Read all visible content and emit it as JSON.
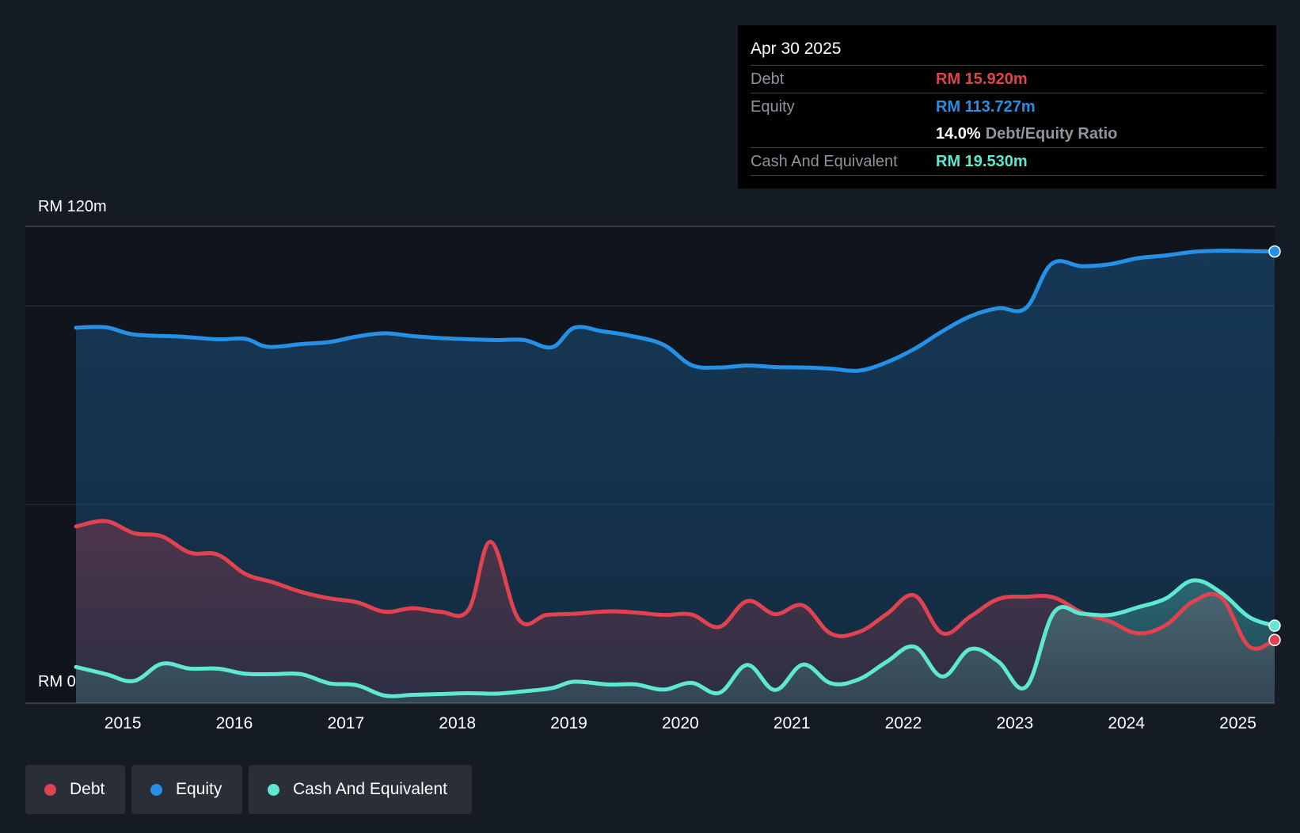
{
  "colors": {
    "background": "#151b24",
    "plot_background": "#10151d",
    "debt": "#e0434f",
    "equity": "#2491e6",
    "cash": "#5ee8d1"
  },
  "tooltip": {
    "date": "Apr 30 2025",
    "debt_label": "Debt",
    "debt_value": "RM 15.920m",
    "equity_label": "Equity",
    "equity_value": "RM 113.727m",
    "ratio_value": "14.0%",
    "ratio_label": "Debt/Equity Ratio",
    "cash_label": "Cash And Equivalent",
    "cash_value": "RM 19.530m"
  },
  "legend": {
    "debt": "Debt",
    "equity": "Equity",
    "cash": "Cash And Equivalent"
  },
  "chart_data": {
    "type": "area",
    "title": "",
    "xlabel": "",
    "ylabel": "",
    "y_top_label": "RM 120m",
    "y_bottom_label": "RM 0",
    "ylim": [
      0,
      120
    ],
    "xlim": [
      2014.58,
      2025.33
    ],
    "x_tick_labels": [
      "2015",
      "2016",
      "2017",
      "2018",
      "2019",
      "2020",
      "2021",
      "2022",
      "2023",
      "2024",
      "2025"
    ],
    "x_ticks": [
      2015,
      2016,
      2017,
      2018,
      2019,
      2020,
      2021,
      2022,
      2023,
      2024,
      2025
    ],
    "gridlines": [
      50,
      100,
      120
    ],
    "series": [
      {
        "name": "Equity",
        "x": [
          2014.58,
          2014.85,
          2015.1,
          2015.5,
          2015.85,
          2016.1,
          2016.3,
          2016.6,
          2016.85,
          2017.1,
          2017.35,
          2017.6,
          2017.85,
          2018.1,
          2018.35,
          2018.6,
          2018.85,
          2019.05,
          2019.3,
          2019.55,
          2019.85,
          2020.1,
          2020.35,
          2020.6,
          2020.85,
          2021.1,
          2021.35,
          2021.6,
          2021.85,
          2022.1,
          2022.35,
          2022.6,
          2022.85,
          2023.1,
          2023.33,
          2023.6,
          2023.85,
          2024.1,
          2024.35,
          2024.6,
          2024.85,
          2025.1,
          2025.33
        ],
        "values": [
          94.5,
          94.6,
          92.8,
          92.3,
          91.6,
          91.7,
          89.7,
          90.4,
          90.9,
          92.3,
          93.1,
          92.4,
          91.9,
          91.6,
          91.4,
          91.4,
          89.6,
          94.5,
          93.6,
          92.5,
          90.2,
          85.1,
          84.5,
          85.0,
          84.6,
          84.5,
          84.2,
          83.7,
          85.8,
          89.2,
          93.6,
          97.4,
          99.4,
          99.5,
          110.6,
          110.0,
          110.5,
          112.0,
          112.7,
          113.6,
          113.9,
          113.8,
          113.7
        ]
      },
      {
        "name": "Debt",
        "x": [
          2014.58,
          2014.85,
          2015.1,
          2015.35,
          2015.6,
          2015.85,
          2016.1,
          2016.35,
          2016.6,
          2016.85,
          2017.1,
          2017.35,
          2017.6,
          2017.85,
          2018.1,
          2018.3,
          2018.55,
          2018.8,
          2019.05,
          2019.35,
          2019.6,
          2019.85,
          2020.1,
          2020.35,
          2020.6,
          2020.85,
          2021.1,
          2021.35,
          2021.6,
          2021.85,
          2022.1,
          2022.35,
          2022.6,
          2022.85,
          2023.1,
          2023.35,
          2023.6,
          2023.85,
          2024.1,
          2024.35,
          2024.6,
          2024.85,
          2025.1,
          2025.33
        ],
        "values": [
          44.5,
          45.8,
          42.8,
          42.0,
          37.9,
          37.4,
          32.5,
          30.4,
          28.0,
          26.4,
          25.4,
          23.0,
          23.9,
          23.0,
          23.5,
          40.6,
          21.1,
          22.2,
          22.5,
          23.1,
          22.8,
          22.2,
          22.3,
          19.2,
          25.7,
          22.4,
          24.6,
          17.5,
          17.9,
          22.4,
          27.1,
          17.6,
          21.8,
          26.2,
          26.8,
          26.6,
          22.8,
          20.6,
          17.6,
          19.6,
          25.6,
          26.6,
          14.3,
          15.9
        ]
      },
      {
        "name": "Cash And Equivalent",
        "x": [
          2014.58,
          2014.85,
          2015.1,
          2015.35,
          2015.6,
          2015.85,
          2016.1,
          2016.35,
          2016.6,
          2016.85,
          2017.1,
          2017.35,
          2017.6,
          2017.85,
          2018.1,
          2018.35,
          2018.6,
          2018.85,
          2019.05,
          2019.35,
          2019.6,
          2019.85,
          2020.1,
          2020.35,
          2020.6,
          2020.85,
          2021.1,
          2021.35,
          2021.6,
          2021.85,
          2022.1,
          2022.35,
          2022.6,
          2022.85,
          2023.1,
          2023.35,
          2023.6,
          2023.85,
          2024.1,
          2024.35,
          2024.6,
          2024.85,
          2025.1,
          2025.33
        ],
        "values": [
          9.1,
          7.3,
          5.6,
          9.9,
          8.7,
          8.7,
          7.4,
          7.3,
          7.3,
          5.0,
          4.5,
          1.9,
          2.1,
          2.3,
          2.5,
          2.4,
          3.0,
          3.8,
          5.4,
          4.7,
          4.7,
          3.4,
          5.1,
          2.6,
          9.6,
          3.3,
          9.7,
          5.0,
          6.0,
          10.4,
          14.2,
          6.7,
          13.6,
          10.5,
          4.1,
          22.8,
          22.5,
          22.2,
          24.1,
          26.3,
          30.9,
          27.8,
          21.7,
          19.5
        ]
      }
    ],
    "annotation": "Apr 30 2025"
  }
}
